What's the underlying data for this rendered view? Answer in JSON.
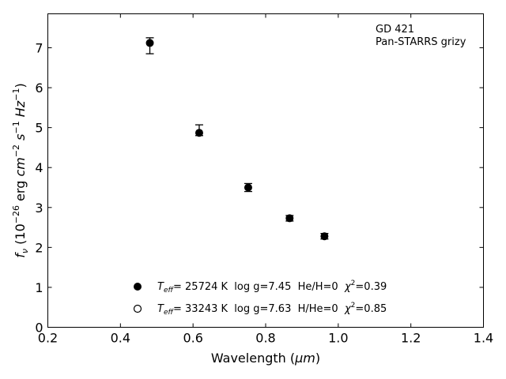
{
  "chart_data": {
    "type": "scatter",
    "annotation_lines": [
      "GD 421",
      "Pan-STARRS grizy"
    ],
    "xlabel_text": "Wavelength (",
    "xlabel_unit": "μm",
    "xlabel_close": ")",
    "ylabel_parts": {
      "f": "f",
      "nu": "ν",
      "open": " (10",
      "exp1": "−26",
      "erg": " erg ",
      "cm": "cm",
      "exp2": "−2",
      "s": "s",
      "exp3": "−1",
      "hz": "Hz",
      "exp4": "−1",
      "close": ")"
    },
    "xlim": [
      0.2,
      1.4
    ],
    "ylim": [
      0,
      7.85
    ],
    "x_ticks": [
      0.2,
      0.4,
      0.6,
      0.8,
      1.0,
      1.2,
      1.4
    ],
    "x_tick_labels": [
      "0.2",
      "0.4",
      "0.6",
      "0.8",
      "1.0",
      "1.2",
      "1.4"
    ],
    "y_ticks": [
      0,
      1,
      2,
      3,
      4,
      5,
      6,
      7
    ],
    "y_tick_labels": [
      "0",
      "1",
      "2",
      "3",
      "4",
      "5",
      "6",
      "7"
    ],
    "grid": false,
    "series": [
      {
        "marker": "filled",
        "points": [
          {
            "x": 0.481,
            "y": 7.12,
            "err_low": 0.27,
            "err_high": 0.13
          },
          {
            "x": 0.617,
            "y": 4.87,
            "err_low": 0.07,
            "err_high": 0.2
          },
          {
            "x": 0.752,
            "y": 3.5,
            "err_low": 0.1,
            "err_high": 0.1
          },
          {
            "x": 0.866,
            "y": 2.73,
            "err_low": 0.07,
            "err_high": 0.07
          },
          {
            "x": 0.962,
            "y": 2.28,
            "err_low": 0.07,
            "err_high": 0.07
          }
        ]
      }
    ],
    "legend_placement": "lower-center",
    "legend": [
      {
        "marker": "filled",
        "teff": "T",
        "teff_sub": "eff",
        "text": "= 25724 K  log g=7.45  He/H=0  ",
        "chi": "χ",
        "chi_sup": "2",
        "chi_val": "=0.39"
      },
      {
        "marker": "open",
        "teff": "T",
        "teff_sub": "eff",
        "text": "= 33243 K  log g=7.63  H/He=0  ",
        "chi": "χ",
        "chi_sup": "2",
        "chi_val": "=0.85"
      }
    ]
  }
}
